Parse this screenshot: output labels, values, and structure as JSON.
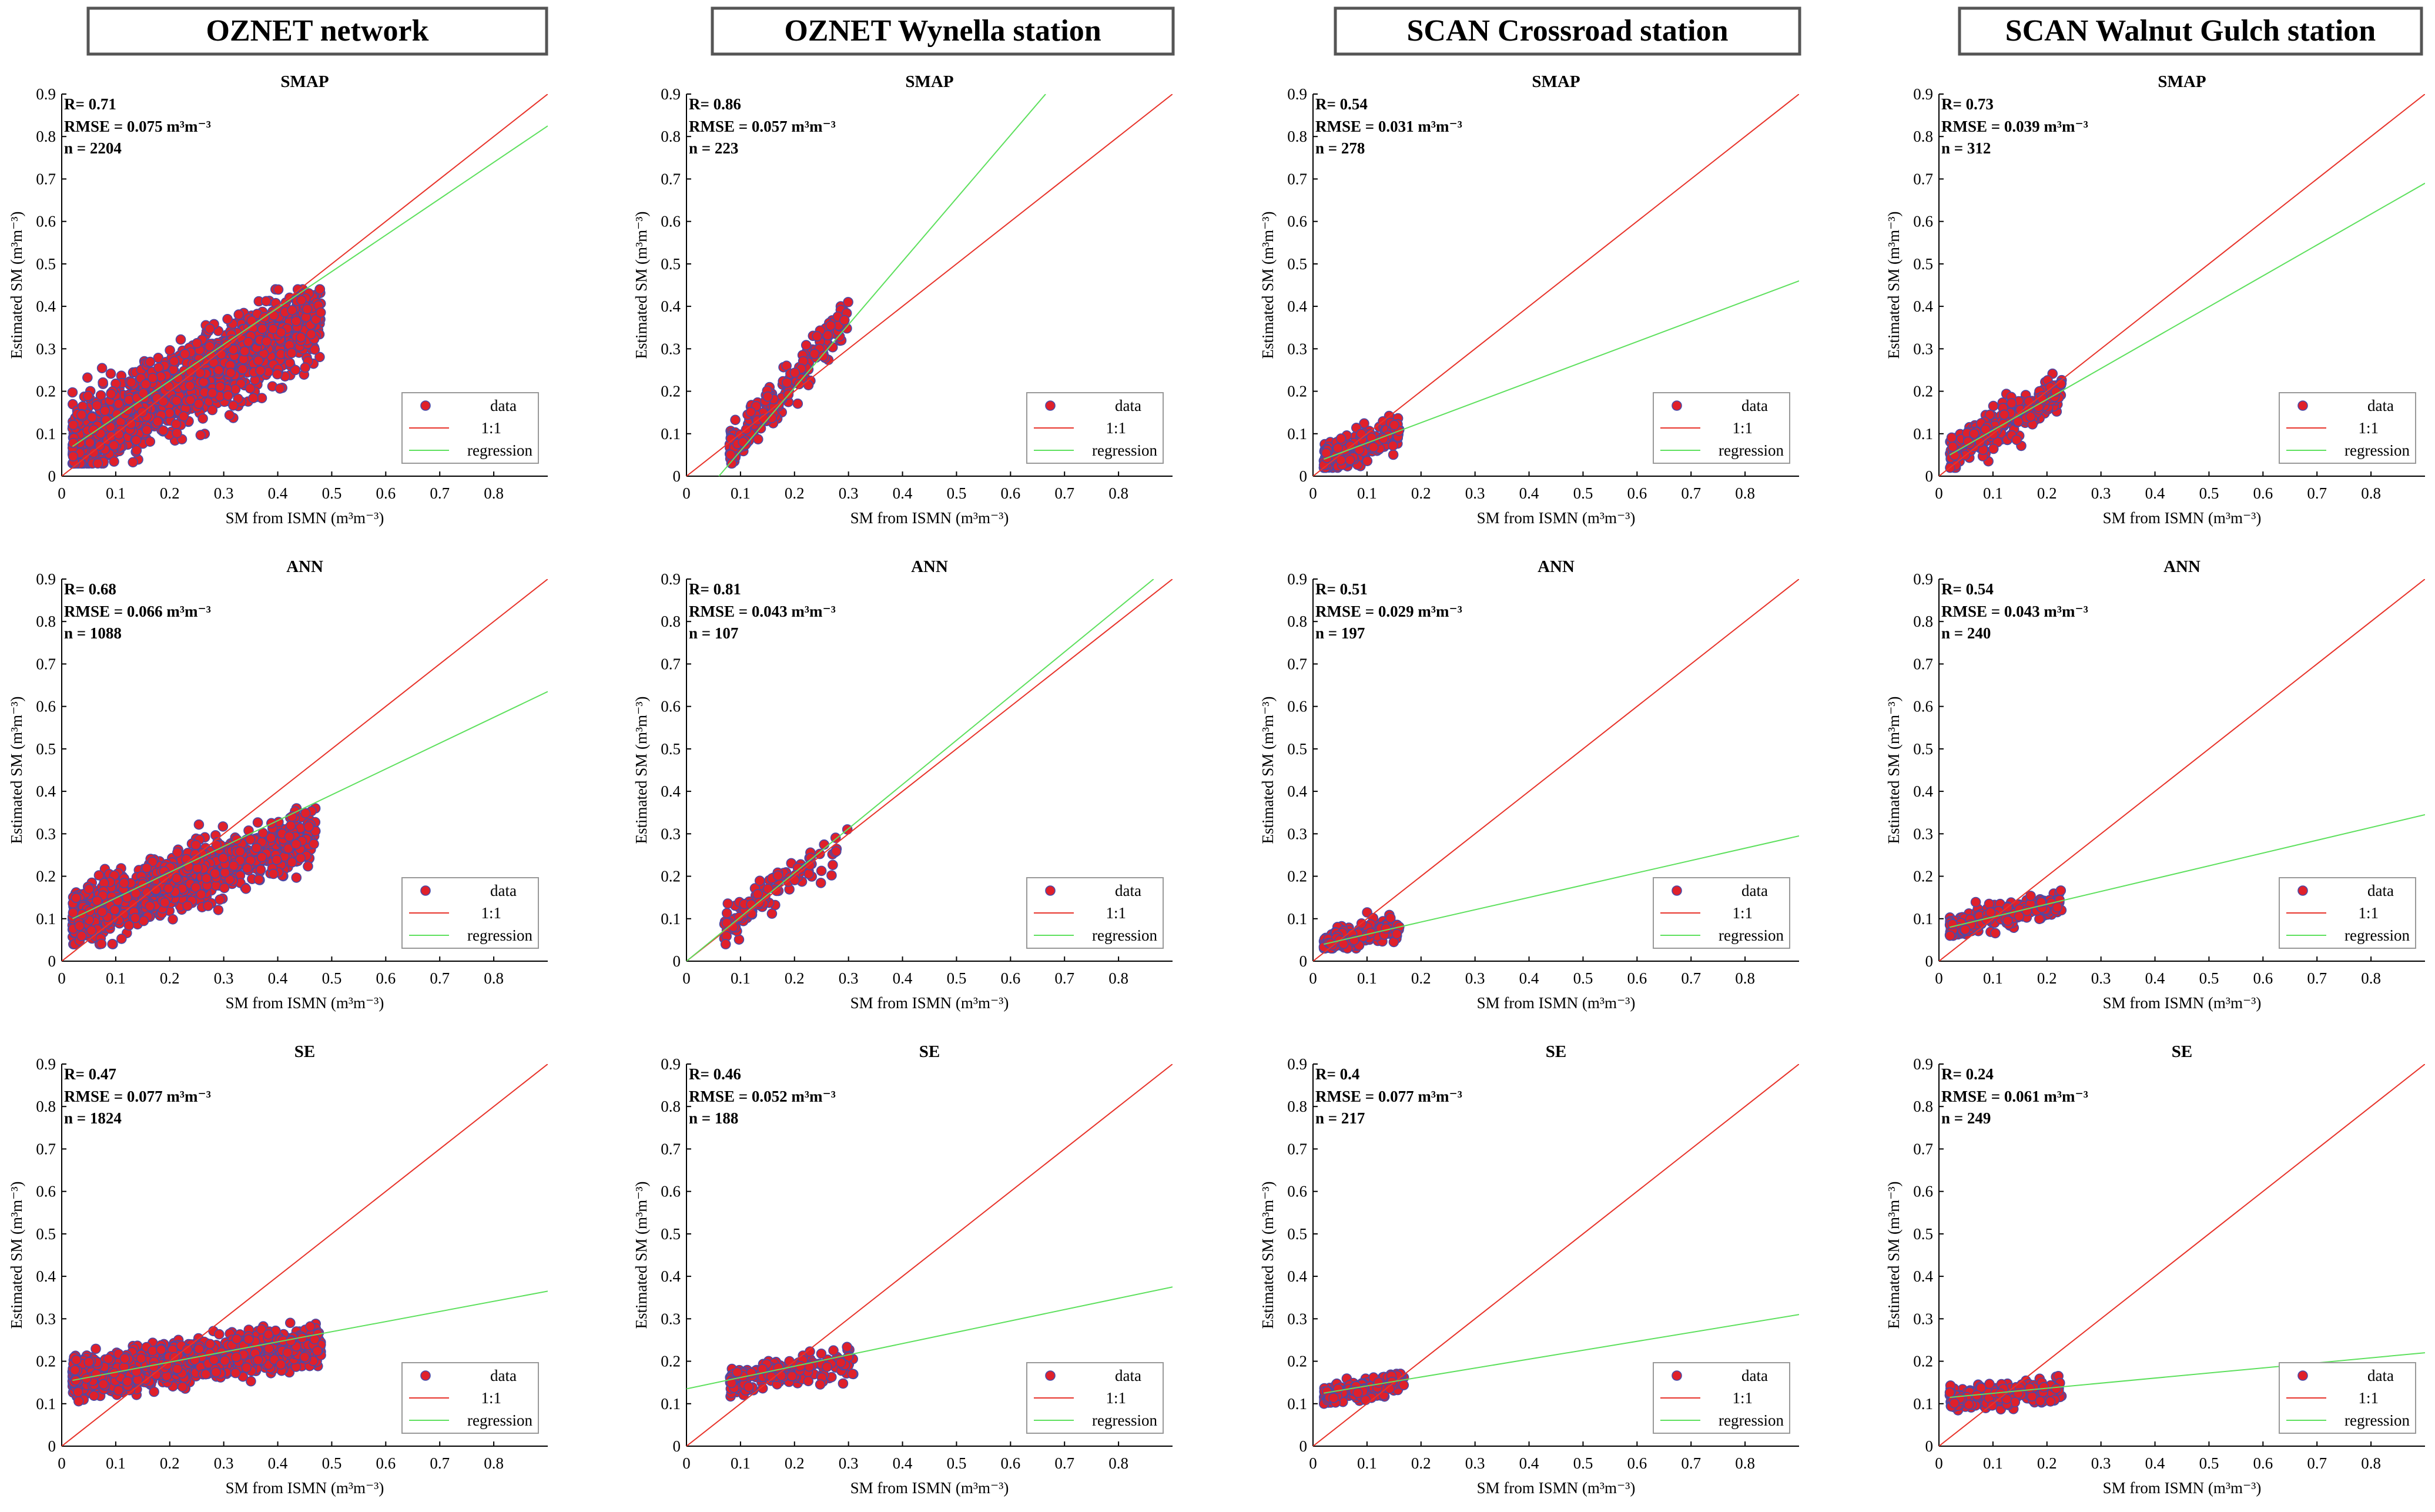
{
  "figure": {
    "columns": [
      "OZNET network",
      "OZNET Wynella station",
      "SCAN Crossroad station",
      "SCAN Walnut Gulch station"
    ],
    "rows": [
      "SMAP",
      "ANN",
      "SE"
    ],
    "legend": [
      "data",
      "1:1",
      "regression"
    ],
    "xlabel": "SM from ISMN  (m³m⁻³)",
    "ylabel": "Estimated SM (m³m⁻³)",
    "xticks": [
      "0",
      "0.1",
      "0.2",
      "0.3",
      "0.4",
      "0.5",
      "0.6",
      "0.7",
      "0.8"
    ],
    "yticks": [
      "0",
      "0.1",
      "0.2",
      "0.3",
      "0.4",
      "0.5",
      "0.6",
      "0.7",
      "0.8",
      "0.9"
    ],
    "colors": {
      "data_fill": "#e0202a",
      "data_edge": "#4a4aa8",
      "one_to_one": "#e8332a",
      "regression": "#5ee05e"
    }
  },
  "chart_data": [
    {
      "type": "scatter",
      "title": "SMAP",
      "column": "OZNET network",
      "xlim": [
        0,
        0.9
      ],
      "ylim": [
        0,
        0.9
      ],
      "stats": {
        "r": "R= 0.71",
        "rmse": "RMSE = 0.075 m³m⁻³",
        "n": "n = 2204"
      },
      "regression_endpoints": [
        [
          0.02,
          0.07
        ],
        [
          0.9,
          0.825
        ]
      ],
      "cluster": {
        "x": [
          0.02,
          0.48
        ],
        "y_line": [
          0.07,
          0.38
        ],
        "spread": 0.085,
        "y_floor": 0.03,
        "y_ceiling": 0.44,
        "count": 1400
      }
    },
    {
      "type": "scatter",
      "title": "SMAP",
      "column": "OZNET Wynella station",
      "xlim": [
        0,
        0.9
      ],
      "ylim": [
        0,
        0.9
      ],
      "stats": {
        "r": "R= 0.86",
        "rmse": "RMSE = 0.057 m³m⁻³",
        "n": "n = 223"
      },
      "regression_endpoints": [
        [
          0.06,
          0.0
        ],
        [
          0.665,
          0.9
        ]
      ],
      "cluster": {
        "x": [
          0.08,
          0.3
        ],
        "y_line": [
          0.06,
          0.38
        ],
        "spread": 0.045,
        "y_floor": 0.03,
        "y_ceiling": 0.41,
        "count": 223
      }
    },
    {
      "type": "scatter",
      "title": "SMAP",
      "column": "SCAN Crossroad station",
      "xlim": [
        0,
        0.9
      ],
      "ylim": [
        0,
        0.9
      ],
      "stats": {
        "r": "R= 0.54",
        "rmse": "RMSE = 0.031 m³m⁻³",
        "n": "n = 278"
      },
      "regression_endpoints": [
        [
          0.02,
          0.04
        ],
        [
          0.9,
          0.46
        ]
      ],
      "cluster": {
        "x": [
          0.02,
          0.16
        ],
        "y_line": [
          0.04,
          0.1
        ],
        "spread": 0.035,
        "y_floor": 0.02,
        "y_ceiling": 0.23,
        "count": 278
      }
    },
    {
      "type": "scatter",
      "title": "SMAP",
      "column": "SCAN Walnut Gulch station",
      "xlim": [
        0,
        0.9
      ],
      "ylim": [
        0,
        0.9
      ],
      "stats": {
        "r": "R= 0.73",
        "rmse": "RMSE = 0.039 m³m⁻³",
        "n": "n = 312"
      },
      "regression_endpoints": [
        [
          0.02,
          0.05
        ],
        [
          0.9,
          0.69
        ]
      ],
      "cluster": {
        "x": [
          0.02,
          0.23
        ],
        "y_line": [
          0.05,
          0.2
        ],
        "spread": 0.04,
        "y_floor": 0.02,
        "y_ceiling": 0.28,
        "count": 312
      }
    },
    {
      "type": "scatter",
      "title": "ANN",
      "column": "OZNET network",
      "xlim": [
        0,
        0.9
      ],
      "ylim": [
        0,
        0.9
      ],
      "stats": {
        "r": "R= 0.68",
        "rmse": "RMSE = 0.066 m³m⁻³",
        "n": "n = 1088"
      },
      "regression_endpoints": [
        [
          0.02,
          0.1
        ],
        [
          0.9,
          0.635
        ]
      ],
      "cluster": {
        "x": [
          0.02,
          0.47
        ],
        "y_line": [
          0.1,
          0.3
        ],
        "spread": 0.06,
        "y_floor": 0.04,
        "y_ceiling": 0.36,
        "count": 1088
      }
    },
    {
      "type": "scatter",
      "title": "ANN",
      "column": "OZNET Wynella station",
      "xlim": [
        0,
        0.9
      ],
      "ylim": [
        0,
        0.9
      ],
      "stats": {
        "r": "R= 0.81",
        "rmse": "RMSE = 0.043 m³m⁻³",
        "n": "n = 107"
      },
      "regression_endpoints": [
        [
          0.0,
          0.0
        ],
        [
          0.865,
          0.9
        ]
      ],
      "cluster": {
        "x": [
          0.07,
          0.3
        ],
        "y_line": [
          0.08,
          0.3
        ],
        "spread": 0.04,
        "y_floor": 0.04,
        "y_ceiling": 0.33,
        "count": 107
      }
    },
    {
      "type": "scatter",
      "title": "ANN",
      "column": "SCAN Crossroad station",
      "xlim": [
        0,
        0.9
      ],
      "ylim": [
        0,
        0.9
      ],
      "stats": {
        "r": "R= 0.51",
        "rmse": "RMSE = 0.029 m³m⁻³",
        "n": "n = 197"
      },
      "regression_endpoints": [
        [
          0.02,
          0.04
        ],
        [
          0.9,
          0.295
        ]
      ],
      "cluster": {
        "x": [
          0.02,
          0.16
        ],
        "y_line": [
          0.04,
          0.08
        ],
        "spread": 0.025,
        "y_floor": 0.03,
        "y_ceiling": 0.15,
        "count": 197
      }
    },
    {
      "type": "scatter",
      "title": "ANN",
      "column": "SCAN Walnut Gulch station",
      "xlim": [
        0,
        0.9
      ],
      "ylim": [
        0,
        0.9
      ],
      "stats": {
        "r": "R= 0.54",
        "rmse": "RMSE = 0.043 m³m⁻³",
        "n": "n = 240"
      },
      "regression_endpoints": [
        [
          0.02,
          0.08
        ],
        [
          0.9,
          0.345
        ]
      ],
      "cluster": {
        "x": [
          0.02,
          0.23
        ],
        "y_line": [
          0.08,
          0.14
        ],
        "spread": 0.025,
        "y_floor": 0.06,
        "y_ceiling": 0.23,
        "count": 240
      }
    },
    {
      "type": "scatter",
      "title": "SE",
      "column": "OZNET network",
      "xlim": [
        0,
        0.9
      ],
      "ylim": [
        0,
        0.9
      ],
      "stats": {
        "r": "R= 0.47",
        "rmse": "RMSE = 0.077 m³m⁻³",
        "n": "n = 1824"
      },
      "regression_endpoints": [
        [
          0.02,
          0.155
        ],
        [
          0.9,
          0.365
        ]
      ],
      "cluster": {
        "x": [
          0.02,
          0.48
        ],
        "y_line": [
          0.16,
          0.24
        ],
        "spread": 0.04,
        "y_floor": 0.1,
        "y_ceiling": 0.46,
        "count": 1400
      }
    },
    {
      "type": "scatter",
      "title": "SE",
      "column": "OZNET Wynella station",
      "xlim": [
        0,
        0.9
      ],
      "ylim": [
        0,
        0.9
      ],
      "stats": {
        "r": "R= 0.46",
        "rmse": "RMSE = 0.052 m³m⁻³",
        "n": "n = 188"
      },
      "regression_endpoints": [
        [
          0.0,
          0.135
        ],
        [
          0.9,
          0.375
        ]
      ],
      "cluster": {
        "x": [
          0.08,
          0.31
        ],
        "y_line": [
          0.15,
          0.2
        ],
        "spread": 0.03,
        "y_floor": 0.1,
        "y_ceiling": 0.27,
        "count": 188
      }
    },
    {
      "type": "scatter",
      "title": "SE",
      "column": "SCAN Crossroad station",
      "xlim": [
        0,
        0.9
      ],
      "ylim": [
        0,
        0.9
      ],
      "stats": {
        "r": "R= 0.4",
        "rmse": "RMSE = 0.077 m³m⁻³",
        "n": "n = 217"
      },
      "regression_endpoints": [
        [
          0.02,
          0.125
        ],
        [
          0.9,
          0.31
        ]
      ],
      "cluster": {
        "x": [
          0.02,
          0.17
        ],
        "y_line": [
          0.12,
          0.15
        ],
        "spread": 0.02,
        "y_floor": 0.1,
        "y_ceiling": 0.22,
        "count": 217
      }
    },
    {
      "type": "scatter",
      "title": "SE",
      "column": "SCAN Walnut Gulch station",
      "xlim": [
        0,
        0.9
      ],
      "ylim": [
        0,
        0.9
      ],
      "stats": {
        "r": "R= 0.24",
        "rmse": "RMSE = 0.061 m³m⁻³",
        "n": "n = 249"
      },
      "regression_endpoints": [
        [
          0.02,
          0.115
        ],
        [
          0.9,
          0.22
        ]
      ],
      "cluster": {
        "x": [
          0.02,
          0.23
        ],
        "y_line": [
          0.11,
          0.13
        ],
        "spread": 0.025,
        "y_floor": 0.06,
        "y_ceiling": 0.22,
        "count": 249
      }
    }
  ]
}
